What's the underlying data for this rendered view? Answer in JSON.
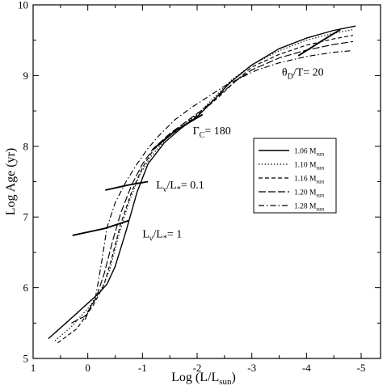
{
  "chart_data": {
    "type": "line",
    "xlabel": {
      "base": "Log (L/L",
      "sub": "sun",
      "end": ")"
    },
    "ylabel": "Log Age (yr)",
    "xlim": [
      1,
      -5.5
    ],
    "ylim": [
      5,
      10
    ],
    "xticks": [
      1,
      0,
      -1,
      -2,
      -3,
      -4,
      -5
    ],
    "xtick_labels": [
      "1",
      "0",
      "-1",
      "-2",
      "-3",
      "-4",
      "-5"
    ],
    "yticks": [
      5,
      6,
      7,
      8,
      9,
      10
    ],
    "ytick_labels": [
      "5",
      "6",
      "7",
      "8",
      "9",
      "10"
    ],
    "grid": false,
    "legend_position": "right-middle",
    "series": [
      {
        "name": "1.06 M",
        "name_sub": "sun",
        "dash": "solid",
        "x": [
          0.72,
          0.4,
          0.0,
          -0.2,
          -0.35,
          -0.5,
          -0.7,
          -0.9,
          -1.1,
          -1.4,
          -1.7,
          -2.0,
          -2.3,
          -2.6,
          -3.0,
          -3.5,
          -4.0,
          -4.5,
          -4.9
        ],
        "y": [
          5.28,
          5.5,
          5.78,
          5.92,
          6.05,
          6.3,
          6.8,
          7.35,
          7.75,
          8.05,
          8.25,
          8.42,
          8.65,
          8.9,
          9.15,
          9.38,
          9.53,
          9.64,
          9.7
        ]
      },
      {
        "name": "1.10 M",
        "name_sub": "sun",
        "dash": "dotted",
        "x": [
          0.6,
          0.3,
          -0.05,
          -0.25,
          -0.4,
          -0.55,
          -0.75,
          -0.95,
          -1.15,
          -1.4,
          -1.7,
          -2.0,
          -2.3,
          -2.6,
          -3.0,
          -3.5,
          -4.0,
          -4.5,
          -4.85
        ],
        "y": [
          5.25,
          5.45,
          5.75,
          5.98,
          6.25,
          6.7,
          7.2,
          7.6,
          7.85,
          8.08,
          8.28,
          8.45,
          8.68,
          8.92,
          9.15,
          9.35,
          9.5,
          9.6,
          9.65
        ]
      },
      {
        "name": "1.16 M",
        "name_sub": "sun",
        "dash": "dashed",
        "x": [
          0.55,
          0.2,
          -0.1,
          -0.3,
          -0.45,
          -0.6,
          -0.8,
          -1.0,
          -1.2,
          -1.5,
          -1.8,
          -2.1,
          -2.4,
          -2.7,
          -3.0,
          -3.5,
          -4.0,
          -4.5,
          -4.85
        ],
        "y": [
          5.22,
          5.42,
          5.75,
          6.05,
          6.45,
          6.9,
          7.35,
          7.7,
          7.95,
          8.15,
          8.32,
          8.5,
          8.7,
          8.92,
          9.12,
          9.3,
          9.43,
          9.52,
          9.57
        ]
      },
      {
        "name": "1.20 M",
        "name_sub": "sun",
        "dash": "longdash",
        "x": [
          0.3,
          0.05,
          -0.15,
          -0.3,
          -0.45,
          -0.6,
          -0.8,
          -1.0,
          -1.2,
          -1.5,
          -1.8,
          -2.1,
          -2.4,
          -2.7,
          -3.0,
          -3.5,
          -4.0,
          -4.5,
          -4.85
        ],
        "y": [
          5.5,
          5.6,
          5.85,
          6.2,
          6.65,
          7.05,
          7.45,
          7.75,
          7.97,
          8.18,
          8.35,
          8.52,
          8.72,
          8.92,
          9.08,
          9.25,
          9.36,
          9.44,
          9.48
        ]
      },
      {
        "name": "1.28 M",
        "name_sub": "sun",
        "dash": "dashdot",
        "x": [
          0.05,
          -0.15,
          -0.25,
          -0.35,
          -0.5,
          -0.7,
          -0.9,
          -1.1,
          -1.3,
          -1.6,
          -1.9,
          -2.2,
          -2.5,
          -2.8,
          -3.1,
          -3.5,
          -4.0,
          -4.5,
          -4.8
        ],
        "y": [
          5.55,
          5.9,
          6.35,
          6.85,
          7.2,
          7.5,
          7.75,
          7.97,
          8.15,
          8.38,
          8.55,
          8.7,
          8.85,
          8.97,
          9.08,
          9.18,
          9.27,
          9.33,
          9.35
        ]
      }
    ],
    "reference_lines": [
      {
        "label": "Lv/L* = 1",
        "x": [
          0.28,
          -0.32,
          -0.75
        ],
        "y": [
          6.74,
          6.84,
          6.95
        ]
      },
      {
        "label": "Lv/L* = 0.1",
        "x": [
          -0.32,
          -0.72,
          -1.1
        ],
        "y": [
          7.38,
          7.45,
          7.5
        ]
      },
      {
        "label": "Gamma_C = 180",
        "x": [
          -1.18,
          -1.6,
          -2.1
        ],
        "y": [
          7.95,
          8.22,
          8.45
        ]
      },
      {
        "label": "theta_D/T = 20",
        "x": [
          -3.85,
          -4.3,
          -4.62
        ],
        "y": [
          9.28,
          9.5,
          9.65
        ]
      }
    ],
    "annotations": [
      {
        "text": "Γ",
        "sub": "C",
        "after": "= 180",
        "x": -1.92,
        "y": 8.17
      },
      {
        "text": "L",
        "sub": "ν",
        "after": "/L",
        "sub2": "*",
        "after2": "= 0.1",
        "x": -1.25,
        "y": 7.4
      },
      {
        "text": "L",
        "sub": "ν",
        "after": "/L",
        "sub2": "*",
        "after2": "= 1",
        "x": -1.0,
        "y": 6.71
      },
      {
        "text": "θ",
        "sub": "D",
        "after": "/T= 20",
        "x": -3.55,
        "y": 9.0
      }
    ]
  }
}
